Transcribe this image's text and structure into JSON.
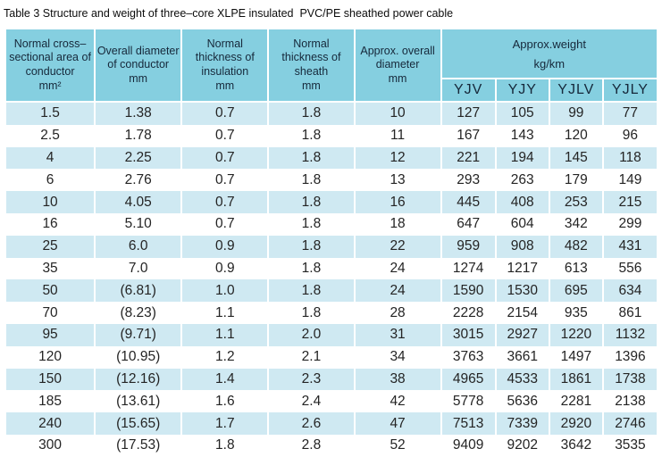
{
  "title": "Table 3 Structure and weight of three–core XLPE insulated  PVC/PE sheathed power cable",
  "colors": {
    "header_bg": "#85cfe0",
    "row_alt_bg": "#cfe9f2",
    "row_bg": "#ffffff",
    "header_text": "#16283a",
    "cell_text": "#242424"
  },
  "table": {
    "headers": [
      {
        "label": "Normal cross–sectional area of conductor",
        "unit": "mm²"
      },
      {
        "label": "Overall diameter of conductor",
        "unit": "mm"
      },
      {
        "label": "Normal thickness of insulation",
        "unit": "mm"
      },
      {
        "label": "Normal thickness of sheath",
        "unit": "mm"
      },
      {
        "label": "Approx. overall diameter",
        "unit": "mm"
      }
    ],
    "weight_group": {
      "line1": "Approx.weight",
      "line2": "kg/km"
    },
    "weight_subheaders": [
      "YJV",
      "YJY",
      "YJLV",
      "YJLY"
    ],
    "rows": [
      [
        "1.5",
        "1.38",
        "0.7",
        "1.8",
        "10",
        "127",
        "105",
        "99",
        "77"
      ],
      [
        "2.5",
        "1.78",
        "0.7",
        "1.8",
        "11",
        "167",
        "143",
        "120",
        "96"
      ],
      [
        "4",
        "2.25",
        "0.7",
        "1.8",
        "12",
        "221",
        "194",
        "145",
        "118"
      ],
      [
        "6",
        "2.76",
        "0.7",
        "1.8",
        "13",
        "293",
        "263",
        "179",
        "149"
      ],
      [
        "10",
        "4.05",
        "0.7",
        "1.8",
        "16",
        "445",
        "408",
        "253",
        "215"
      ],
      [
        "16",
        "5.10",
        "0.7",
        "1.8",
        "18",
        "647",
        "604",
        "342",
        "299"
      ],
      [
        "25",
        "6.0",
        "0.9",
        "1.8",
        "22",
        "959",
        "908",
        "482",
        "431"
      ],
      [
        "35",
        "7.0",
        "0.9",
        "1.8",
        "24",
        "1274",
        "1217",
        "613",
        "556"
      ],
      [
        "50",
        "(6.81)",
        "1.0",
        "1.8",
        "24",
        "1590",
        "1530",
        "695",
        "634"
      ],
      [
        "70",
        "(8.23)",
        "1.1",
        "1.8",
        "28",
        "2228",
        "2154",
        "935",
        "861"
      ],
      [
        "95",
        "(9.71)",
        "1.1",
        "2.0",
        "31",
        "3015",
        "2927",
        "1220",
        "1132"
      ],
      [
        "120",
        "(10.95)",
        "1.2",
        "2.1",
        "34",
        "3763",
        "3661",
        "1497",
        "1396"
      ],
      [
        "150",
        "(12.16)",
        "1.4",
        "2.3",
        "38",
        "4965",
        "4533",
        "1861",
        "1738"
      ],
      [
        "185",
        "(13.61)",
        "1.6",
        "2.4",
        "42",
        "5778",
        "5636",
        "2281",
        "2138"
      ],
      [
        "240",
        "(15.65)",
        "1.7",
        "2.6",
        "47",
        "7513",
        "7339",
        "2920",
        "2746"
      ],
      [
        "300",
        "(17.53)",
        "1.8",
        "2.8",
        "52",
        "9409",
        "9202",
        "3642",
        "3535"
      ]
    ]
  }
}
